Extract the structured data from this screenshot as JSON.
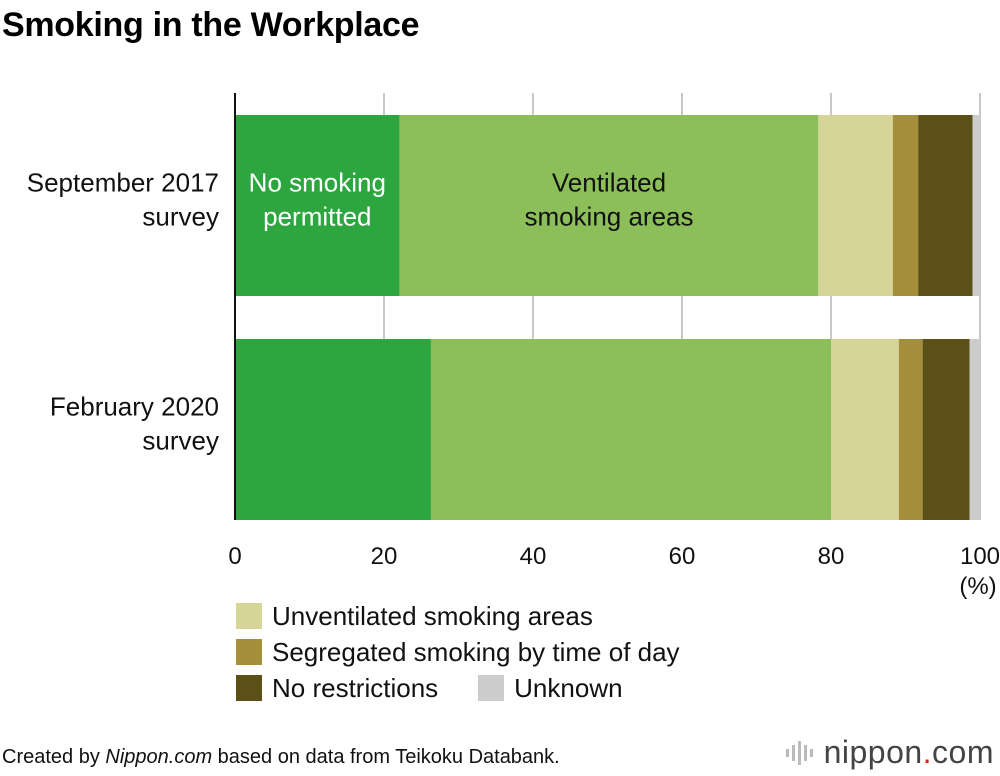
{
  "chart_data": {
    "type": "bar",
    "orientation": "horizontal",
    "stacked": true,
    "title": "Smoking in the Workplace",
    "categories": [
      "September 2017 survey",
      "February 2020 survey"
    ],
    "category_lines": [
      [
        "September 2017",
        "survey"
      ],
      [
        "February 2020",
        "survey"
      ]
    ],
    "series": [
      {
        "name": "No smoking permitted",
        "color": "#2ea640",
        "values": [
          22.1,
          26.3
        ]
      },
      {
        "name": "Ventilated smoking areas",
        "color": "#8cbf5a",
        "values": [
          56.2,
          53.7
        ]
      },
      {
        "name": "Unventilated smoking areas",
        "color": "#d6d598",
        "values": [
          10.0,
          9.1
        ]
      },
      {
        "name": "Segregated smoking by time of day",
        "color": "#a58f3a",
        "values": [
          3.4,
          3.2
        ]
      },
      {
        "name": "No restrictions",
        "color": "#5a5018",
        "values": [
          7.3,
          6.3
        ]
      },
      {
        "name": "Unknown",
        "color": "#cccccc",
        "values": [
          1.0,
          1.4
        ]
      }
    ],
    "inline_labels": [
      {
        "series": 0,
        "category": 0,
        "lines": [
          "No smoking",
          "permitted"
        ],
        "color": "#ffffff"
      },
      {
        "series": 1,
        "category": 0,
        "lines": [
          "Ventilated",
          "smoking areas"
        ],
        "color": "#111111"
      }
    ],
    "xlim": [
      0,
      100
    ],
    "xticks": [
      0,
      20,
      40,
      60,
      80,
      100
    ],
    "unit_label": "(%)",
    "grid": true
  },
  "legend": {
    "rows": [
      [
        {
          "label": "Unventilated smoking areas",
          "color": "#d6d598"
        }
      ],
      [
        {
          "label": "Segregated smoking by time of day",
          "color": "#a58f3a"
        }
      ],
      [
        {
          "label": "No restrictions",
          "color": "#5a5018"
        },
        {
          "label": "Unknown",
          "color": "#cccccc"
        }
      ]
    ]
  },
  "footer": {
    "prefix": "Created by ",
    "source_name": "Nippon.com",
    "suffix": " based on data from Teikoku Databank."
  },
  "brand": {
    "name_main": "nippon",
    "name_dot": ".",
    "name_tld": "com"
  }
}
